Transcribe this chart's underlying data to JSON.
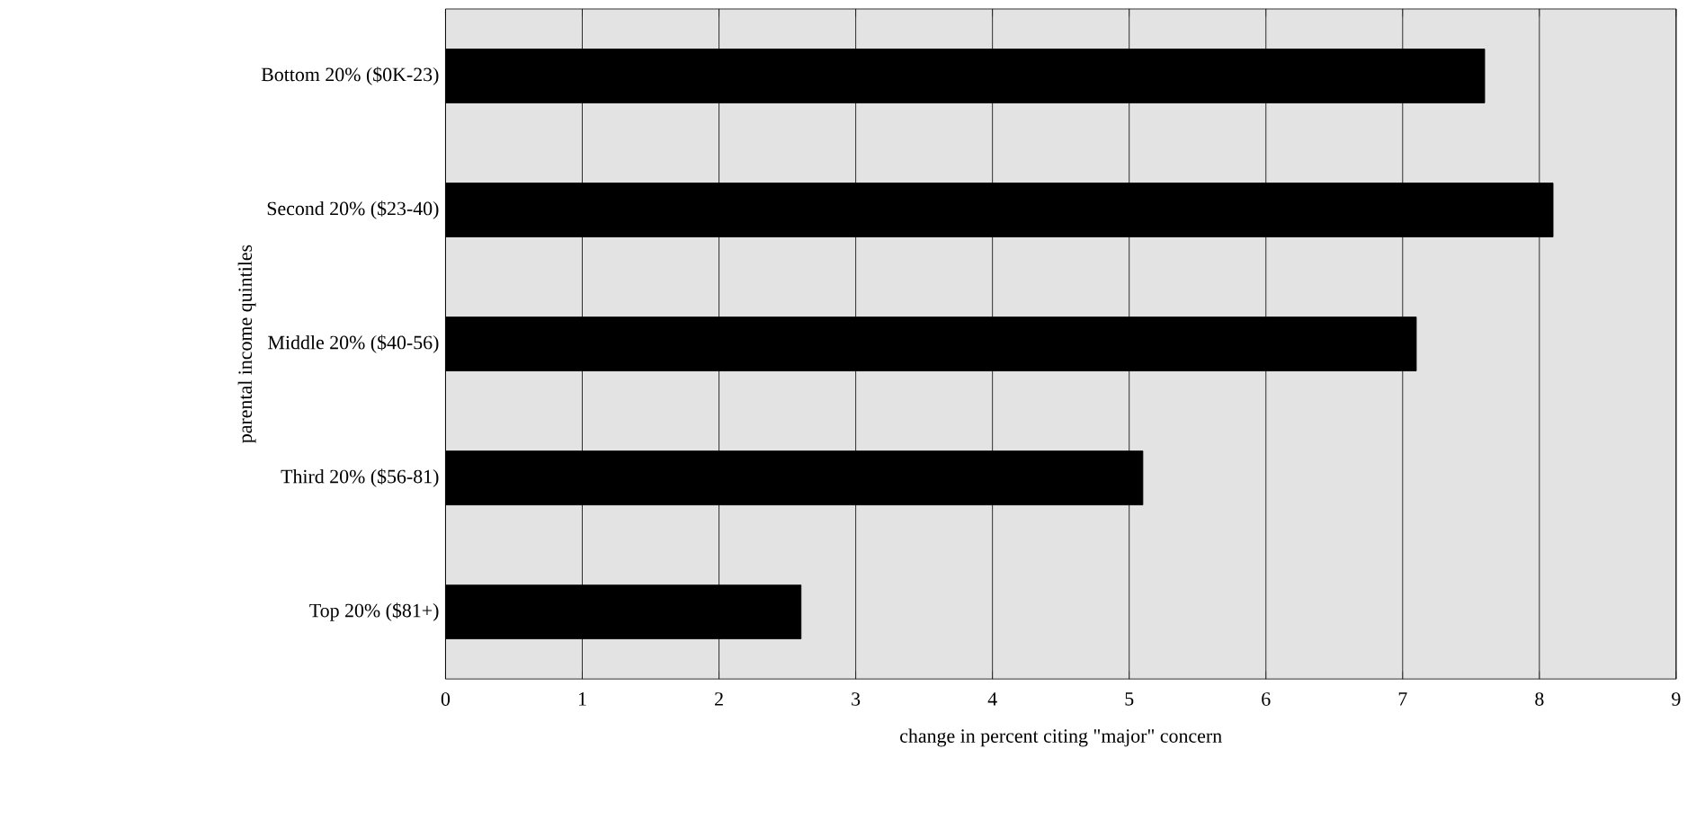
{
  "chart_data": {
    "type": "bar",
    "orientation": "horizontal",
    "xlabel": "change in percent citing \"major\" concern",
    "ylabel": "parental income quintiles",
    "categories": [
      "Bottom 20% ($0K-23)",
      "Second 20% ($23-40)",
      "Middle 20% ($40-56)",
      "Third 20% ($56-81)",
      "Top 20% ($81+)"
    ],
    "values": [
      7.6,
      8.1,
      7.1,
      5.1,
      2.6
    ],
    "color": "#000000",
    "xlim": [
      0,
      9
    ],
    "xticks": [
      0,
      1,
      2,
      3,
      4,
      5,
      6,
      7,
      8,
      9
    ],
    "grid": "x"
  }
}
